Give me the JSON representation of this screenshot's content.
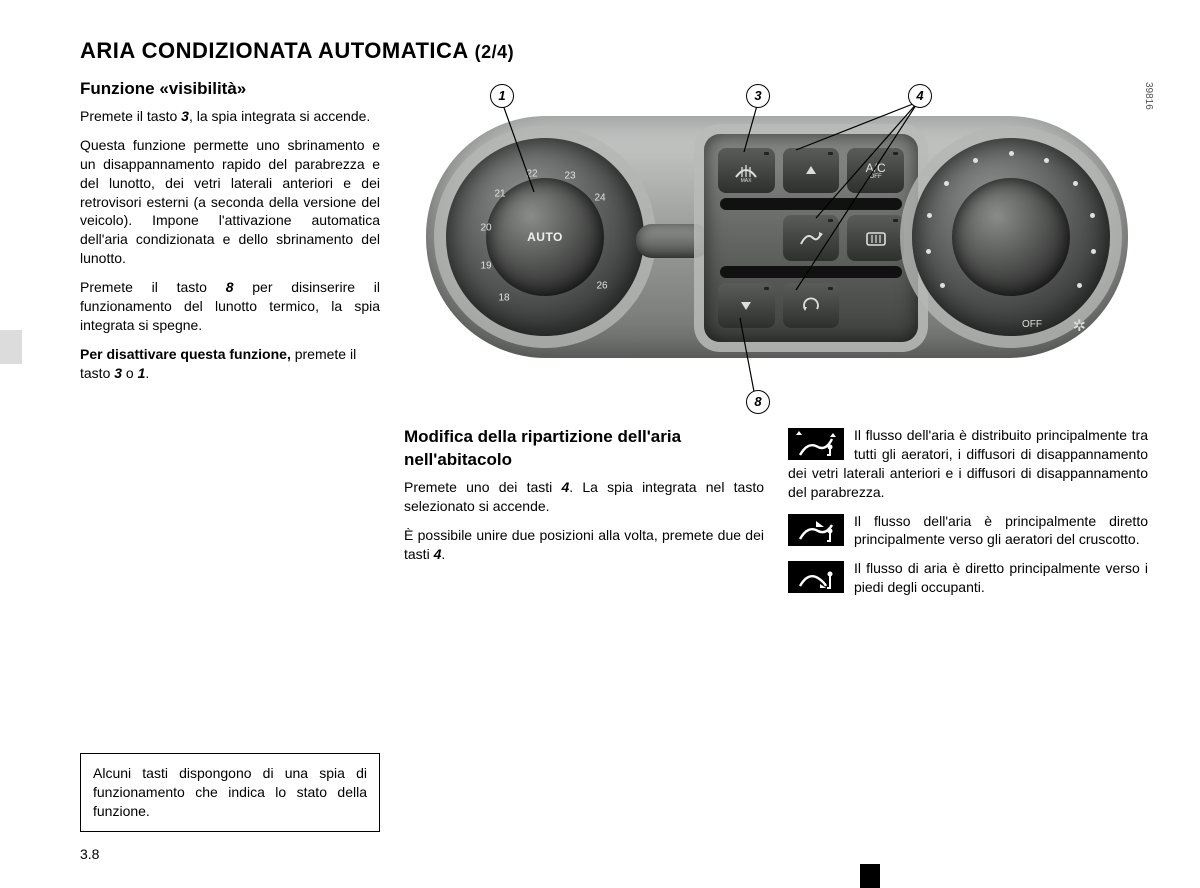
{
  "title": "ARIA CONDIZIONATA AUTOMATICA",
  "title_part": "(2/4)",
  "photo_ref": "39816",
  "page_number": "3.8",
  "col1": {
    "heading": "Funzione «visibilità»",
    "p1a": "Premete il tasto ",
    "p1_key": "3",
    "p1b": ", la spia integrata si accende.",
    "p2": "Questa funzione permette uno sbrinamento e un disappannamento rapido del parabrezza e del lunotto, dei vetri laterali anteriori e dei retrovisori esterni (a seconda della versione del veicolo). Impone l'attivazione automatica dell'aria condizionata e dello sbrinamento del lunotto.",
    "p3a": "Premete il tasto ",
    "p3_key": "8",
    "p3b": " per disinserire il funzionamento del lunotto termico, la spia integrata si spegne.",
    "p4_bold": "Per disattivare questa funzione,",
    "p4a": " premete il tasto ",
    "p4_key1": "3",
    "p4_mid": " o ",
    "p4_key2": "1",
    "p4_end": "."
  },
  "col2": {
    "heading": "Modifica della ripartizione dell'aria nell'abitacolo",
    "p1a": "Premete uno dei tasti ",
    "p1_key": "4",
    "p1b": ". La spia integrata nel tasto selezionato si accende.",
    "p2a": "È possibile unire due posizioni alla volta, premete due dei tasti ",
    "p2_key": "4",
    "p2b": "."
  },
  "col3": {
    "d1": "Il flusso dell'aria è distribuito principalmente tra tutti gli aeratori, i diffusori di disappannamento dei vetri laterali anteriori e i diffusori di disappannamento del parabrezza.",
    "d2": "Il flusso dell'aria è principalmente diretto principalmente verso gli aeratori del cruscotto.",
    "d3": "Il flusso di aria è diretto principalmente verso i piedi degli occupanti."
  },
  "note": "Alcuni tasti dispongono di una spia di funzionamento che indica lo stato della funzione.",
  "callouts": {
    "c1": "1",
    "c3": "3",
    "c4": "4",
    "c8": "8"
  },
  "dial": {
    "auto": "AUTO",
    "numbers": [
      "18",
      "19",
      "20",
      "21",
      "22",
      "23",
      "24",
      "",
      "26"
    ],
    "angles": [
      200,
      180,
      160,
      135,
      100,
      70,
      45,
      20,
      -20
    ]
  },
  "buttons": {
    "ac": "A/C",
    "ac_sub": "OFF",
    "off": "OFF"
  },
  "right_dots_angles": [
    -125,
    -100,
    -75,
    -50,
    -25,
    0,
    25,
    50,
    75,
    100,
    125
  ],
  "colors": {
    "page_bg": "#ffffff",
    "text": "#000000",
    "panel_light": "#cfd1d0",
    "panel_dark": "#6e706e",
    "knob_dark": "#2b2c2b",
    "icon_fg": "#ffffff"
  }
}
